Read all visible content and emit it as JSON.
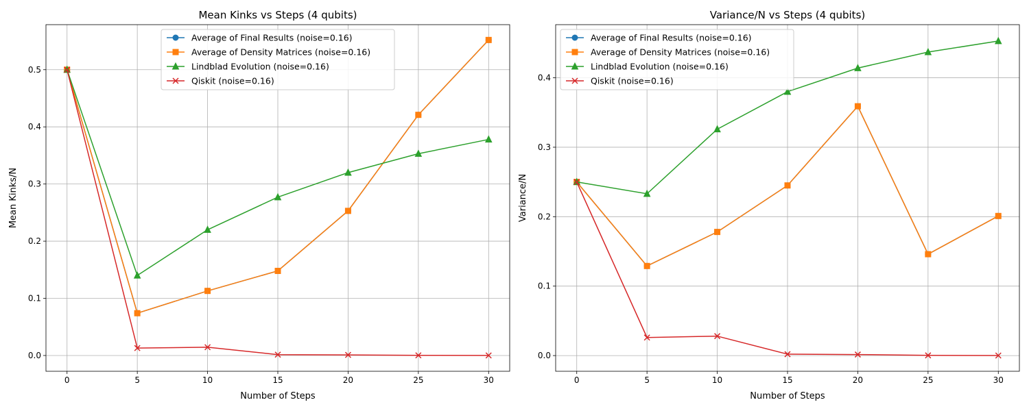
{
  "colors": {
    "avg_final": "#1f77b4",
    "avg_density": "#ff7f0e",
    "lindblad": "#2ca02c",
    "qiskit": "#d62728",
    "grid": "#b0b0b0"
  },
  "chart_data": [
    {
      "type": "line",
      "title": "Mean Kinks vs Steps (4 qubits)",
      "xlabel": "Number of Steps",
      "ylabel": "Mean Kinks/N",
      "x": [
        0,
        5,
        10,
        15,
        20,
        25,
        30
      ],
      "xlim": [
        -1.5,
        31.5
      ],
      "ylim": [
        -0.0276,
        0.5788
      ],
      "xticks": [
        0,
        5,
        10,
        15,
        20,
        25,
        30
      ],
      "yticks": [
        0.0,
        0.1,
        0.2,
        0.3,
        0.4,
        0.5
      ],
      "ytick_labels": [
        "0.0",
        "0.1",
        "0.2",
        "0.3",
        "0.4",
        "0.5"
      ],
      "grid": true,
      "legend_position": "top-center",
      "series": [
        {
          "name": "Average of Final Results (noise=0.16)",
          "color_key": "avg_final",
          "marker": "circle",
          "values": [
            0.5,
            0.074,
            0.113,
            0.148,
            0.253,
            0.421,
            0.552
          ]
        },
        {
          "name": "Average of Density Matrices (noise=0.16)",
          "color_key": "avg_density",
          "marker": "square",
          "values": [
            0.5,
            0.074,
            0.113,
            0.148,
            0.253,
            0.421,
            0.552
          ]
        },
        {
          "name": "Lindblad Evolution (noise=0.16)",
          "color_key": "lindblad",
          "marker": "triangle",
          "values": [
            0.5,
            0.14,
            0.22,
            0.277,
            0.32,
            0.353,
            0.378
          ]
        },
        {
          "name": "Qiskit (noise=0.16)",
          "color_key": "qiskit",
          "marker": "x",
          "values": [
            0.5,
            0.013,
            0.0145,
            0.0015,
            0.001,
            0.0003,
            0.0001
          ]
        }
      ]
    },
    {
      "type": "line",
      "title": "Variance/N vs Steps (4 qubits)",
      "xlabel": "Number of Steps",
      "ylabel": "Variance/N",
      "x": [
        0,
        5,
        10,
        15,
        20,
        25,
        30
      ],
      "xlim": [
        -1.5,
        31.5
      ],
      "ylim": [
        -0.0226,
        0.4765
      ],
      "xticks": [
        0,
        5,
        10,
        15,
        20,
        25,
        30
      ],
      "yticks": [
        0.0,
        0.1,
        0.2,
        0.3,
        0.4
      ],
      "ytick_labels": [
        "0.0",
        "0.1",
        "0.2",
        "0.3",
        "0.4"
      ],
      "grid": true,
      "legend_position": "top-left",
      "series": [
        {
          "name": "Average of Final Results (noise=0.16)",
          "color_key": "avg_final",
          "marker": "circle",
          "values": [
            0.25,
            0.129,
            0.178,
            0.245,
            0.359,
            0.146,
            0.201
          ]
        },
        {
          "name": "Average of Density Matrices (noise=0.16)",
          "color_key": "avg_density",
          "marker": "square",
          "values": [
            0.25,
            0.129,
            0.178,
            0.245,
            0.359,
            0.146,
            0.201
          ]
        },
        {
          "name": "Lindblad Evolution (noise=0.16)",
          "color_key": "lindblad",
          "marker": "triangle",
          "values": [
            0.25,
            0.233,
            0.326,
            0.38,
            0.414,
            0.437,
            0.453
          ]
        },
        {
          "name": "Qiskit (noise=0.16)",
          "color_key": "qiskit",
          "marker": "x",
          "values": [
            0.25,
            0.026,
            0.028,
            0.002,
            0.0015,
            0.0003,
            0.0001
          ]
        }
      ]
    }
  ]
}
